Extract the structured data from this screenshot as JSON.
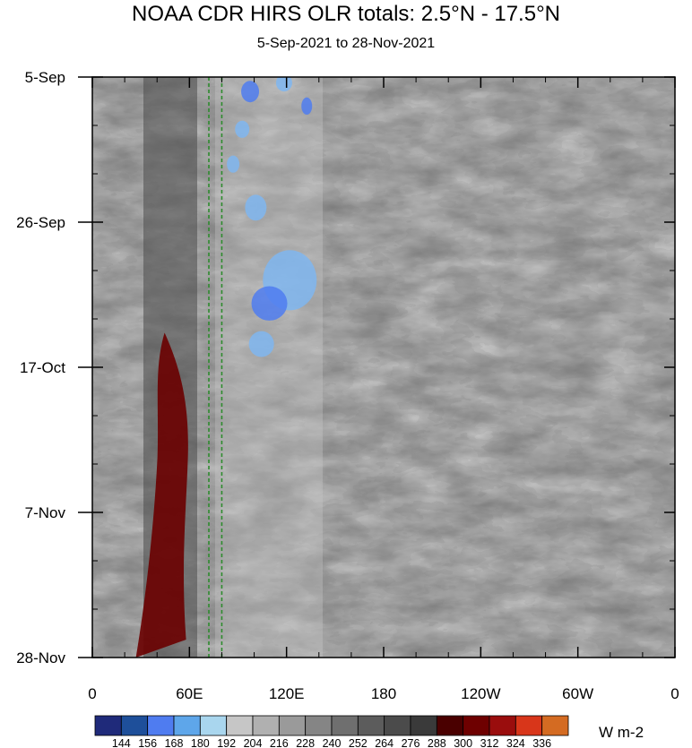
{
  "header": {
    "title": "NOAA CDR HIRS OLR totals: 2.5°N - 17.5°N",
    "subtitle": "5-Sep-2021 to 28-Nov-2021"
  },
  "colorbar": {
    "units": "W m-2",
    "levels": [
      "144",
      "156",
      "168",
      "180",
      "192",
      "204",
      "216",
      "228",
      "240",
      "252",
      "264",
      "276",
      "288",
      "300",
      "312",
      "324",
      "336"
    ],
    "colors": [
      "#1f2a7a",
      "#1e4f9a",
      "#4f7cf0",
      "#5ea6ea",
      "#a9d6ee",
      "#c6c6c6",
      "#b0b0b0",
      "#9a9a9a",
      "#858585",
      "#6f6f6f",
      "#5c5c5c",
      "#4b4b4b",
      "#3a3a3a",
      "#4a0000",
      "#6e0000",
      "#9a0d0d",
      "#d8361a",
      "#d46b22"
    ]
  },
  "chart_data": {
    "type": "heatmap",
    "title": "NOAA CDR HIRS OLR totals: 2.5°N - 17.5°N",
    "subtitle": "5-Sep-2021 to 28-Nov-2021",
    "xlabel": "",
    "ylabel": "",
    "x_ticks": [
      "0",
      "60E",
      "120E",
      "180",
      "120W",
      "60W",
      "0"
    ],
    "y_ticks": [
      "5-Sep",
      "26-Sep",
      "17-Oct",
      "7-Nov",
      "28-Nov"
    ],
    "x_range": [
      "0",
      "0"
    ],
    "y_range": [
      "5-Sep-2021",
      "28-Nov-2021"
    ],
    "y_reversed": true,
    "reference_lines": [
      {
        "style": "dashed",
        "color": "#2e8b2e",
        "x_lon_east": 72
      },
      {
        "style": "dashed",
        "color": "#2e8b2e",
        "x_lon_east": 80
      }
    ],
    "features": [
      {
        "description": "high OLR (>288 W m-2) band",
        "lon_east_range": [
          38,
          62
        ],
        "date_range": [
          "12-Oct-2021",
          "28-Nov-2021"
        ]
      },
      {
        "description": "low OLR (<192 W m-2) convective patches",
        "lon_east_range": [
          80,
          150
        ],
        "date_range": [
          "5-Sep-2021",
          "17-Oct-2021"
        ]
      }
    ]
  }
}
